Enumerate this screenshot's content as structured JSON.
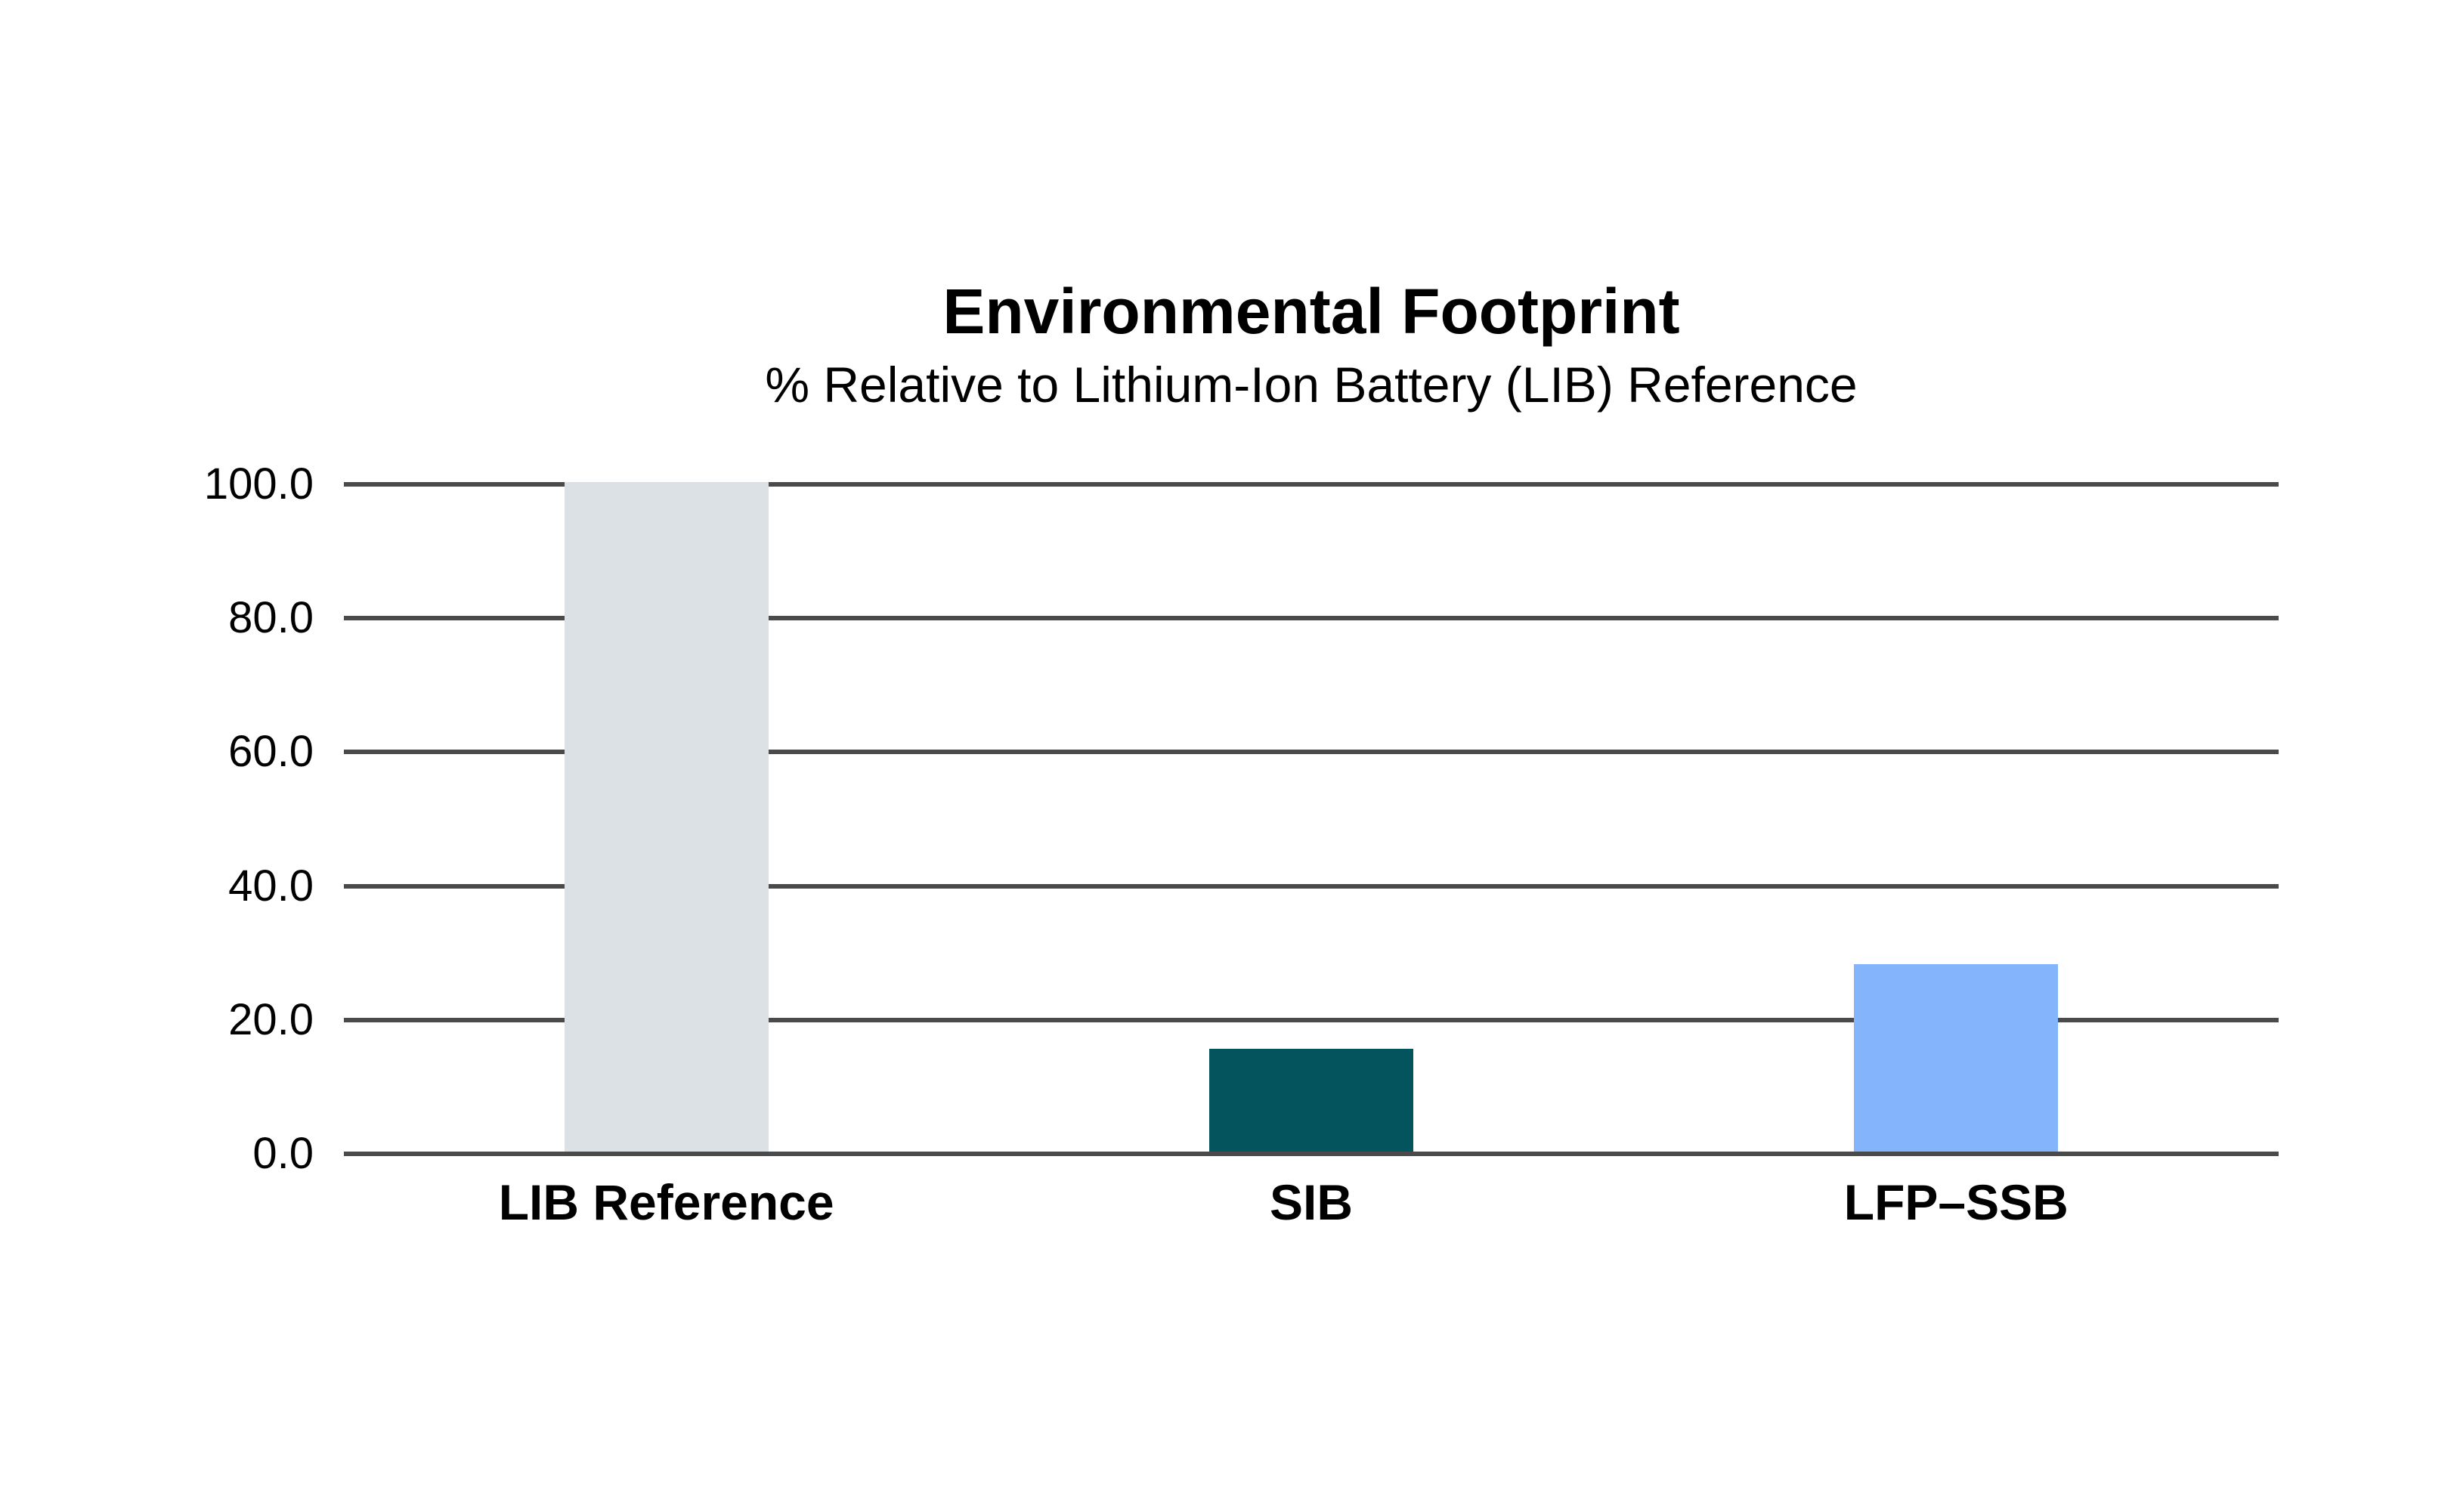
{
  "chart_data": {
    "type": "bar",
    "title": "Environmental Footprint",
    "subtitle": "% Relative to Lithium-Ion Battery (LIB) Reference",
    "categories": [
      "LIB Reference",
      "SIB",
      "LFP–SSB"
    ],
    "values": [
      100.0,
      15.4,
      28.0
    ],
    "bar_colors": [
      "#dbe1e4",
      "#03545c",
      "#84b4fb"
    ],
    "xlabel": "",
    "ylabel": "",
    "ylim": [
      0,
      100
    ],
    "yticks": [
      0,
      20,
      40,
      60,
      80,
      100
    ],
    "ytick_labels": [
      "0.0",
      "20.0",
      "40.0",
      "60.0",
      "80.0",
      "100.0"
    ],
    "grid": true,
    "gridline_color": "#4a4a4a",
    "legend": "none",
    "background": "#ffffff"
  }
}
